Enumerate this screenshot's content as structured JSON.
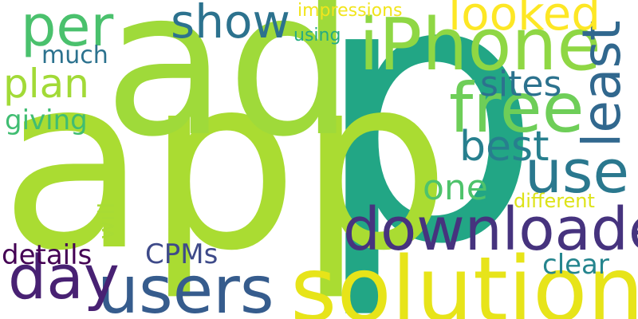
{
  "cloud": {
    "words": [
      {
        "text": "p",
        "color": "#22a685"
      },
      {
        "text": "app",
        "color": "#aadc32"
      },
      {
        "text": "ad",
        "color": "#9fda3a"
      },
      {
        "text": "solution",
        "color": "#e7e419"
      },
      {
        "text": "downloaded",
        "color": "#46337e"
      },
      {
        "text": "iPhone",
        "color": "#8fd744"
      },
      {
        "text": "free",
        "color": "#6ece58"
      },
      {
        "text": "users",
        "color": "#365c8d"
      },
      {
        "text": "use",
        "color": "#2a788e"
      },
      {
        "text": "day",
        "color": "#482173"
      },
      {
        "text": "least",
        "color": "#31688e"
      },
      {
        "text": "looked",
        "color": "#fde725"
      },
      {
        "text": "best",
        "color": "#277f8e"
      },
      {
        "text": "per",
        "color": "#4ac16d"
      },
      {
        "text": "show",
        "color": "#2c728e"
      },
      {
        "text": "plan",
        "color": "#a2da37"
      },
      {
        "text": "sites",
        "color": "#2c728e"
      },
      {
        "text": "one",
        "color": "#4ec36b"
      },
      {
        "text": "details",
        "color": "#440154"
      },
      {
        "text": "CPMs",
        "color": "#3e4a89"
      },
      {
        "text": "clear",
        "color": "#25858e"
      },
      {
        "text": "giving",
        "color": "#40bd72"
      },
      {
        "text": "much",
        "color": "#2c728e"
      },
      {
        "text": "will",
        "color": "#a8db34"
      },
      {
        "text": "different",
        "color": "#dde318"
      },
      {
        "text": "using",
        "color": "#25ab82"
      },
      {
        "text": "impressions",
        "color": "#f1e51d"
      }
    ]
  }
}
